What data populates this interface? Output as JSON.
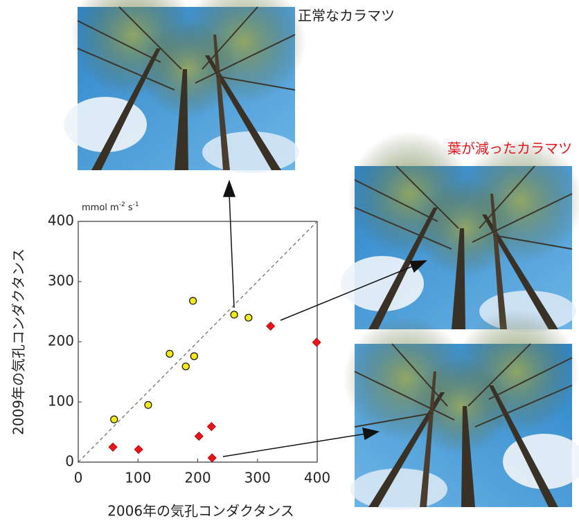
{
  "chart_data": {
    "type": "scatter",
    "xlabel": "2006年の気孔コンダクタンス",
    "ylabel": "2009年の気孔コンダクタンス",
    "unit": {
      "base": "mmol m",
      "exp1": "-2",
      "mid": " s",
      "exp2": "-1"
    },
    "annotations": {
      "normal": "正常なカラマツ",
      "reduced": "葉が減ったカラマツ"
    },
    "xlim": [
      0,
      400
    ],
    "ylim": [
      0,
      400
    ],
    "xticks": [
      0,
      100,
      200,
      300,
      400
    ],
    "yticks": [
      0,
      100,
      200,
      300,
      400
    ],
    "series": [
      {
        "color": "#f2ea1c",
        "marker": "circle",
        "x": [
          60,
          117,
          153,
          180,
          194,
          192,
          261,
          285
        ],
        "values": [
          71,
          95,
          180,
          159,
          176,
          268,
          245,
          240
        ]
      },
      {
        "color": "#e8141c",
        "marker": "diamond",
        "x": [
          58,
          101,
          202,
          223,
          224,
          322,
          399
        ],
        "values": [
          25,
          21,
          43,
          59,
          7,
          226,
          199
        ]
      }
    ]
  }
}
